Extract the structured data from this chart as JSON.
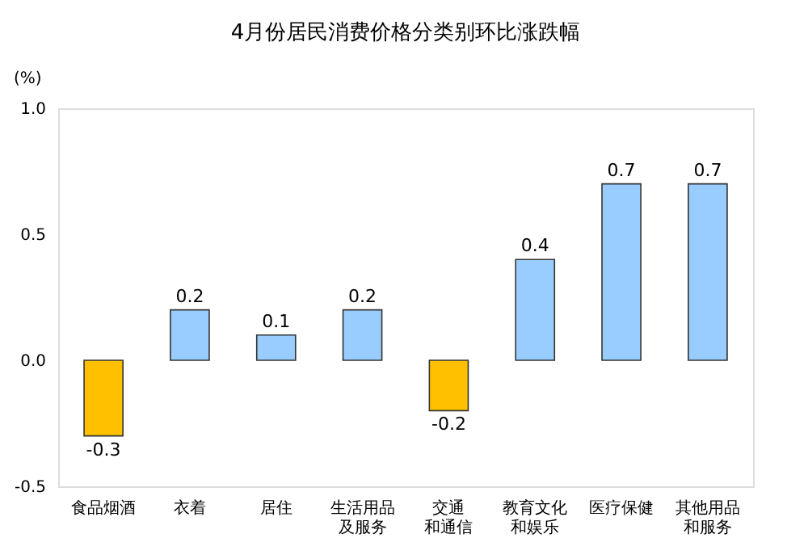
{
  "chart_data": {
    "type": "bar",
    "title": "4月份居民消费价格分类别环比涨跌幅",
    "ylabel": "(%)",
    "categories": [
      "食品烟酒",
      "衣着",
      "居住",
      "生活用品及服务",
      "交通和通信",
      "教育文化和娱乐",
      "医疗保健",
      "其他用品和服务"
    ],
    "values": [
      -0.3,
      0.2,
      0.1,
      0.2,
      -0.2,
      0.4,
      0.7,
      0.7
    ],
    "colors": [
      "#ffc000",
      "#99ccff",
      "#99ccff",
      "#99ccff",
      "#ffc000",
      "#99ccff",
      "#99ccff",
      "#99ccff"
    ],
    "ylim": [
      -0.5,
      1.0
    ],
    "yticks": [
      {
        "value": -0.5,
        "label": "-0.5"
      },
      {
        "value": 0,
        "label": "0.0"
      },
      {
        "value": 0.5,
        "label": "0.5"
      },
      {
        "value": 1.0,
        "label": "1.0"
      }
    ],
    "data_labels": true,
    "grid": false
  }
}
